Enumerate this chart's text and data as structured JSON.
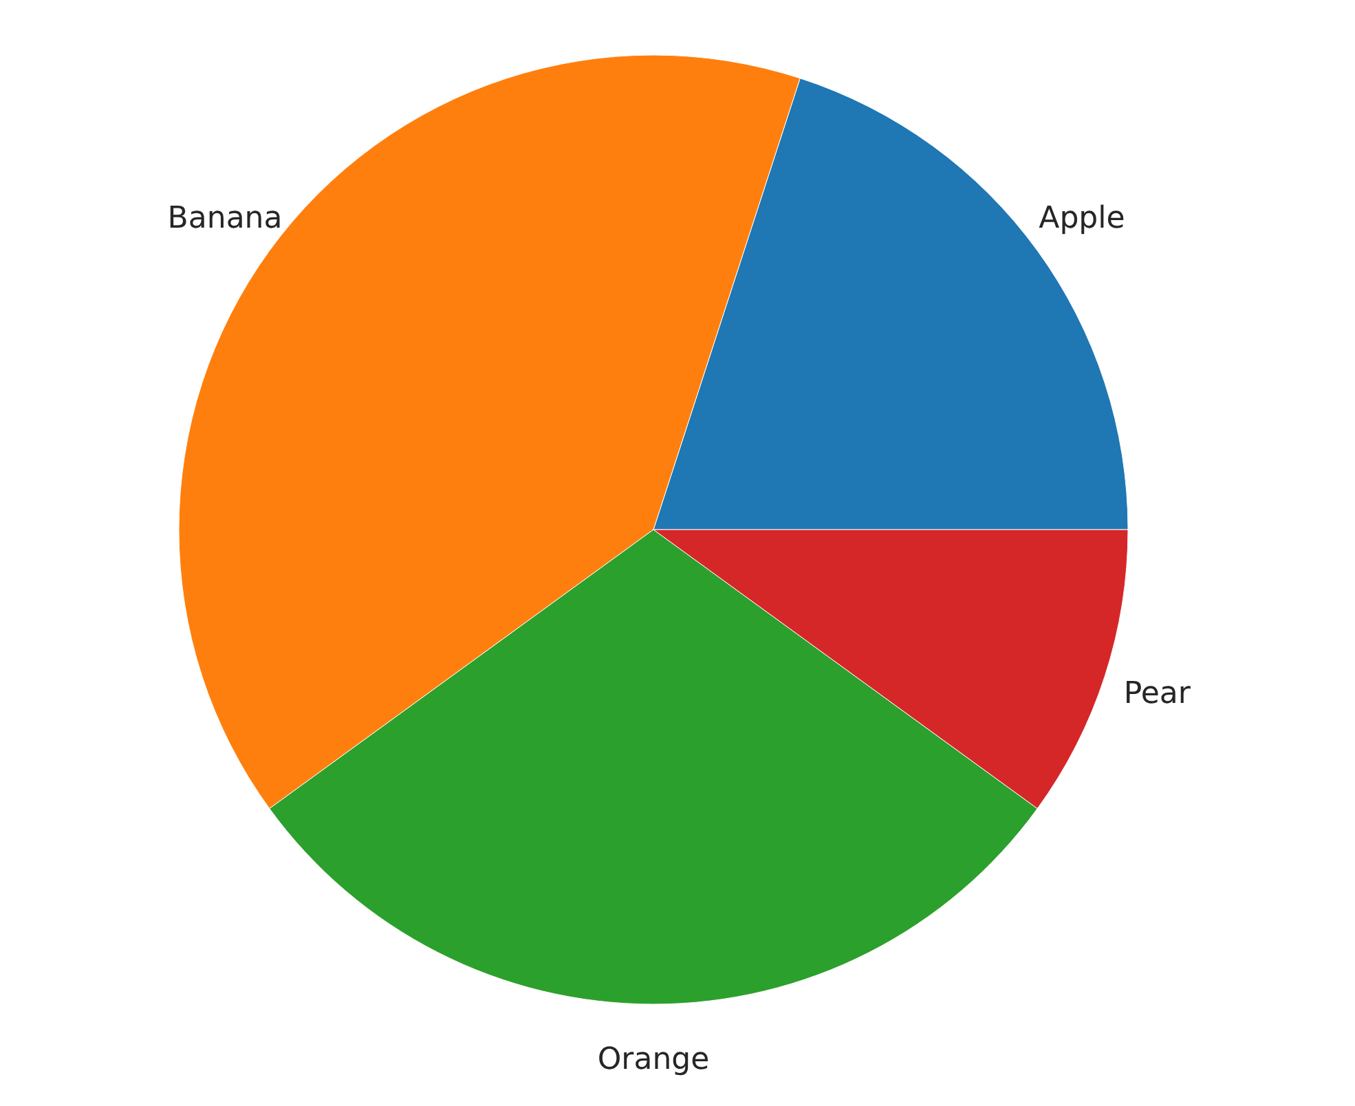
{
  "chart_data": {
    "type": "pie",
    "categories": [
      "Apple",
      "Banana",
      "Orange",
      "Pear"
    ],
    "values": [
      20,
      40,
      30,
      10
    ],
    "colors": [
      "#1f77b4",
      "#ff7f0e",
      "#2ca02c",
      "#d62728"
    ],
    "legend": false
  }
}
